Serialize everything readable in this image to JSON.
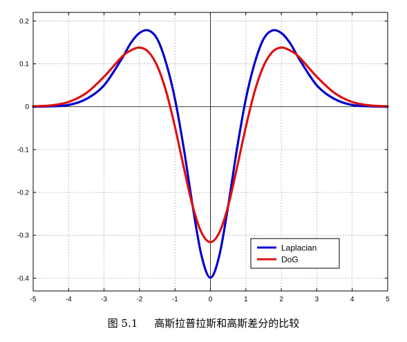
{
  "chart_data": {
    "type": "line",
    "xlim": [
      -5,
      5
    ],
    "ylim": [
      -0.43,
      0.22
    ],
    "x_ticks": [
      "-5",
      "-4",
      "-3",
      "-2",
      "-1",
      "0",
      "1",
      "2",
      "3",
      "4",
      "5"
    ],
    "y_ticks": [
      "0.2",
      "0.1",
      "0",
      "-0.1",
      "-0.2",
      "-0.3",
      "-0.4"
    ],
    "grid": true,
    "legend_position": "bottom-right",
    "series": [
      {
        "name": "Laplacian",
        "color": "#0000cc",
        "x": [
          -5,
          -4.5,
          -4,
          -3.5,
          -3,
          -2.5,
          -2.25,
          -2,
          -1.75,
          -1.5,
          -1.25,
          -1,
          -0.75,
          -0.5,
          -0.25,
          0,
          0.25,
          0.5,
          0.75,
          1,
          1.25,
          1.5,
          1.75,
          2,
          2.25,
          2.5,
          3,
          3.5,
          4,
          4.5,
          5
        ],
        "y": [
          0.0,
          0.001,
          0.004,
          0.018,
          0.05,
          0.112,
          0.148,
          0.172,
          0.178,
          0.158,
          0.102,
          0.018,
          -0.098,
          -0.232,
          -0.348,
          -0.399,
          -0.348,
          -0.232,
          -0.098,
          0.018,
          0.102,
          0.158,
          0.178,
          0.172,
          0.148,
          0.112,
          0.05,
          0.018,
          0.004,
          0.001,
          0.0
        ]
      },
      {
        "name": "DoG",
        "color": "#dd1111",
        "x": [
          -5,
          -4.5,
          -4,
          -3.5,
          -3,
          -2.5,
          -2.25,
          -2,
          -1.75,
          -1.5,
          -1.25,
          -1,
          -0.75,
          -0.5,
          -0.25,
          0,
          0.25,
          0.5,
          0.75,
          1,
          1.25,
          1.5,
          1.75,
          2,
          2.25,
          2.5,
          3,
          3.5,
          4,
          4.5,
          5
        ],
        "y": [
          0.001,
          0.003,
          0.011,
          0.032,
          0.07,
          0.116,
          0.131,
          0.138,
          0.128,
          0.095,
          0.036,
          -0.047,
          -0.142,
          -0.232,
          -0.294,
          -0.316,
          -0.294,
          -0.232,
          -0.142,
          -0.047,
          0.036,
          0.095,
          0.128,
          0.138,
          0.131,
          0.116,
          0.07,
          0.032,
          0.011,
          0.003,
          0.001
        ]
      }
    ]
  },
  "caption": {
    "number": "图 5.1",
    "text": "高斯拉普拉斯和高斯差分的比较"
  }
}
